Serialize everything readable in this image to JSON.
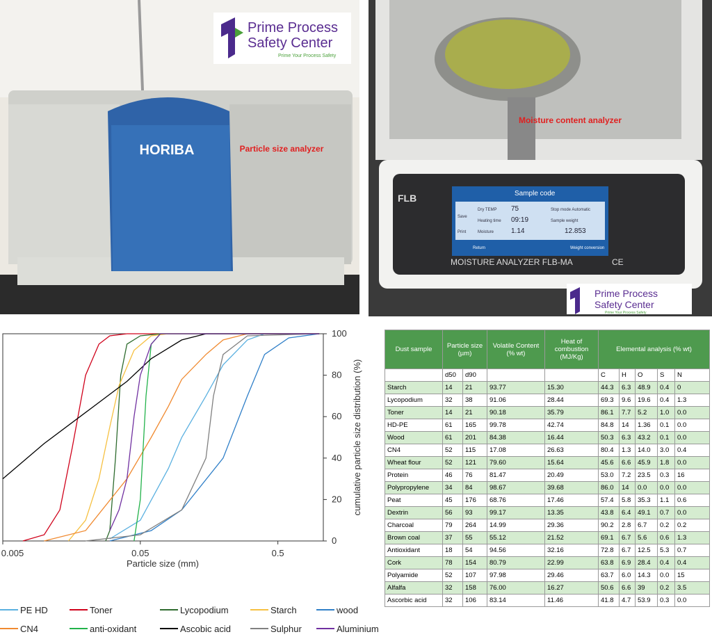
{
  "photos": [
    {
      "label": "Particle size analyzer",
      "brand": "HORIBA",
      "logo": {
        "line1": "Prime Process",
        "line2": "Safety Center",
        "tagline": "Prime Your Process Safety"
      }
    },
    {
      "label": "Moisture content analyzer",
      "device": "MOISTURE ANALYZER FLB-MA",
      "maker": "FLB",
      "mark": "CE",
      "screen": {
        "title": "Sample code",
        "temp_label": "Dry TEMP",
        "temp": "75",
        "time_label": "Heating time",
        "time": "09:19",
        "moisture_label": "Moisture",
        "moisture": "1.14",
        "stop_mode": "Stop mode Automatic",
        "weight_label": "Sample weight",
        "weight": "12.853",
        "buttons": [
          "Save",
          "Print",
          "Return",
          "Weight conversion"
        ]
      },
      "logo": {
        "line1": "Prime Process",
        "line2": "Safety Center",
        "tagline": "Prime Your Process Safety"
      }
    }
  ],
  "chart_data": {
    "type": "line",
    "xlabel": "Particle size (mm)",
    "ylabel": "cumulative particle size distribution (%)",
    "xscale": "log",
    "xlim": [
      0.005,
      1.07
    ],
    "ylim": [
      0,
      100
    ],
    "xticks": [
      0.005,
      0.05,
      0.5
    ],
    "yticks": [
      0,
      20,
      40,
      60,
      80,
      100
    ],
    "series": [
      {
        "name": "PE HD",
        "color": "#5ab0e0",
        "x": [
          0.03,
          0.05,
          0.08,
          0.1,
          0.15,
          0.2,
          0.3,
          0.4,
          1
        ],
        "values": [
          1,
          10,
          35,
          50,
          70,
          85,
          97,
          100,
          100
        ]
      },
      {
        "name": "Toner",
        "color": "#d0021b",
        "x": [
          0.007,
          0.01,
          0.013,
          0.016,
          0.02,
          0.025,
          0.03,
          0.04,
          1
        ],
        "values": [
          0,
          3,
          15,
          45,
          80,
          95,
          99,
          100,
          100
        ]
      },
      {
        "name": "Lycopodium",
        "color": "#2e6b2e",
        "x": [
          0.028,
          0.03,
          0.033,
          0.036,
          0.04,
          0.05,
          0.07,
          1
        ],
        "values": [
          0,
          5,
          40,
          80,
          95,
          99,
          100,
          100
        ]
      },
      {
        "name": "Starch",
        "color": "#f6c040",
        "x": [
          0.015,
          0.02,
          0.025,
          0.03,
          0.035,
          0.045,
          0.06,
          0.08,
          1
        ],
        "values": [
          0,
          10,
          30,
          55,
          75,
          92,
          99,
          100,
          100
        ]
      },
      {
        "name": "wood",
        "color": "#2f7fc8",
        "x": [
          0.03,
          0.06,
          0.1,
          0.2,
          0.3,
          0.4,
          0.6,
          1
        ],
        "values": [
          0,
          5,
          15,
          40,
          70,
          90,
          98,
          100
        ]
      },
      {
        "name": "CN4",
        "color": "#f08a30",
        "x": [
          0.01,
          0.02,
          0.04,
          0.06,
          0.08,
          0.1,
          0.15,
          0.2,
          0.3,
          1
        ],
        "values": [
          0,
          5,
          30,
          50,
          65,
          78,
          90,
          97,
          100,
          100
        ]
      },
      {
        "name": "anti-oxidant",
        "color": "#22b24a",
        "x": [
          0.045,
          0.05,
          0.055,
          0.06,
          0.07,
          1
        ],
        "values": [
          0,
          20,
          70,
          95,
          100,
          100
        ]
      },
      {
        "name": "Ascobic acid",
        "color": "#000000",
        "x": [
          0.005,
          0.01,
          0.02,
          0.04,
          0.06,
          0.1,
          0.15,
          1
        ],
        "values": [
          30,
          47,
          62,
          77,
          88,
          97,
          100,
          100
        ]
      },
      {
        "name": "Sulphur",
        "color": "#808080",
        "x": [
          0.02,
          0.05,
          0.1,
          0.15,
          0.17,
          0.2,
          0.3,
          1
        ],
        "values": [
          0,
          3,
          15,
          40,
          70,
          90,
          99,
          100
        ]
      },
      {
        "name": "Aluminium",
        "color": "#7030a0",
        "x": [
          0.03,
          0.035,
          0.04,
          0.045,
          0.05,
          0.06,
          0.07,
          1
        ],
        "values": [
          5,
          15,
          30,
          60,
          80,
          95,
          100,
          100
        ]
      }
    ]
  },
  "table": {
    "headers": [
      "Dust sample",
      "Particle size (µm)",
      "Volatile Content (% wt)",
      "Heat of combustion (MJ/Kg)",
      "Elemental analysis (% wt)"
    ],
    "subheaders": [
      "d50",
      "d90",
      "C",
      "H",
      "O",
      "S",
      "N"
    ],
    "rows": [
      [
        "Starch",
        "14",
        "21",
        "93.77",
        "15.30",
        "44.3",
        "6.3",
        "48.9",
        "0.4",
        "0"
      ],
      [
        "Lycopodium",
        "32",
        "38",
        "91.06",
        "28.44",
        "69.3",
        "9.6",
        "19.6",
        "0.4",
        "1.3"
      ],
      [
        "Toner",
        "14",
        "21",
        "90.18",
        "35.79",
        "86.1",
        "7.7",
        "5.2",
        "1.0",
        "0.0"
      ],
      [
        "HD-PE",
        "61",
        "165",
        "99.78",
        "42.74",
        "84.8",
        "14",
        "1.36",
        "0.1",
        "0.0"
      ],
      [
        "Wood",
        "61",
        "201",
        "84.38",
        "16.44",
        "50.3",
        "6.3",
        "43.2",
        "0.1",
        "0.0"
      ],
      [
        "CN4",
        "52",
        "115",
        "17.08",
        "26.63",
        "80.4",
        "1.3",
        "14.0",
        "3.0",
        "0.4"
      ],
      [
        "Wheat flour",
        "52",
        "121",
        "79.60",
        "15.64",
        "45.6",
        "6.6",
        "45.9",
        "1.8",
        "0.0"
      ],
      [
        "Protein",
        "46",
        "76",
        "81.47",
        "20.49",
        "53.0",
        "7.2",
        "23.5",
        "0.3",
        "16"
      ],
      [
        "Polypropylene",
        "34",
        "84",
        "98.67",
        "39.68",
        "86.0",
        "14",
        "0.0",
        "0.0",
        "0.0"
      ],
      [
        "Peat",
        "45",
        "176",
        "68.76",
        "17.46",
        "57.4",
        "5.8",
        "35.3",
        "1.1",
        "0.6"
      ],
      [
        "Dextrin",
        "56",
        "93",
        "99.17",
        "13.35",
        "43.8",
        "6.4",
        "49.1",
        "0.7",
        "0.0"
      ],
      [
        "Charcoal",
        "79",
        "264",
        "14.99",
        "29.36",
        "90.2",
        "2.8",
        "6.7",
        "0.2",
        "0.2"
      ],
      [
        "Brown coal",
        "37",
        "55",
        "55.12",
        "21.52",
        "69.1",
        "6.7",
        "5.6",
        "0.6",
        "1.3"
      ],
      [
        "Antioxidant",
        "18",
        "54",
        "94.56",
        "32.16",
        "72.8",
        "6.7",
        "12.5",
        "5.3",
        "0.7"
      ],
      [
        "Cork",
        "78",
        "154",
        "80.79",
        "22.99",
        "63.8",
        "6.9",
        "28.4",
        "0.4",
        "0.4"
      ],
      [
        "Polyamide",
        "52",
        "107",
        "97.98",
        "29.46",
        "63.7",
        "6.0",
        "14.3",
        "0.0",
        "15"
      ],
      [
        "Alfalfa",
        "32",
        "158",
        "76.00",
        "16.27",
        "50.6",
        "6.6",
        "39",
        "0.2",
        "3.5"
      ],
      [
        "Ascorbic acid",
        "32",
        "106",
        "83.14",
        "11.46",
        "41.8",
        "4.7",
        "53.9",
        "0.3",
        "0.0"
      ]
    ]
  }
}
